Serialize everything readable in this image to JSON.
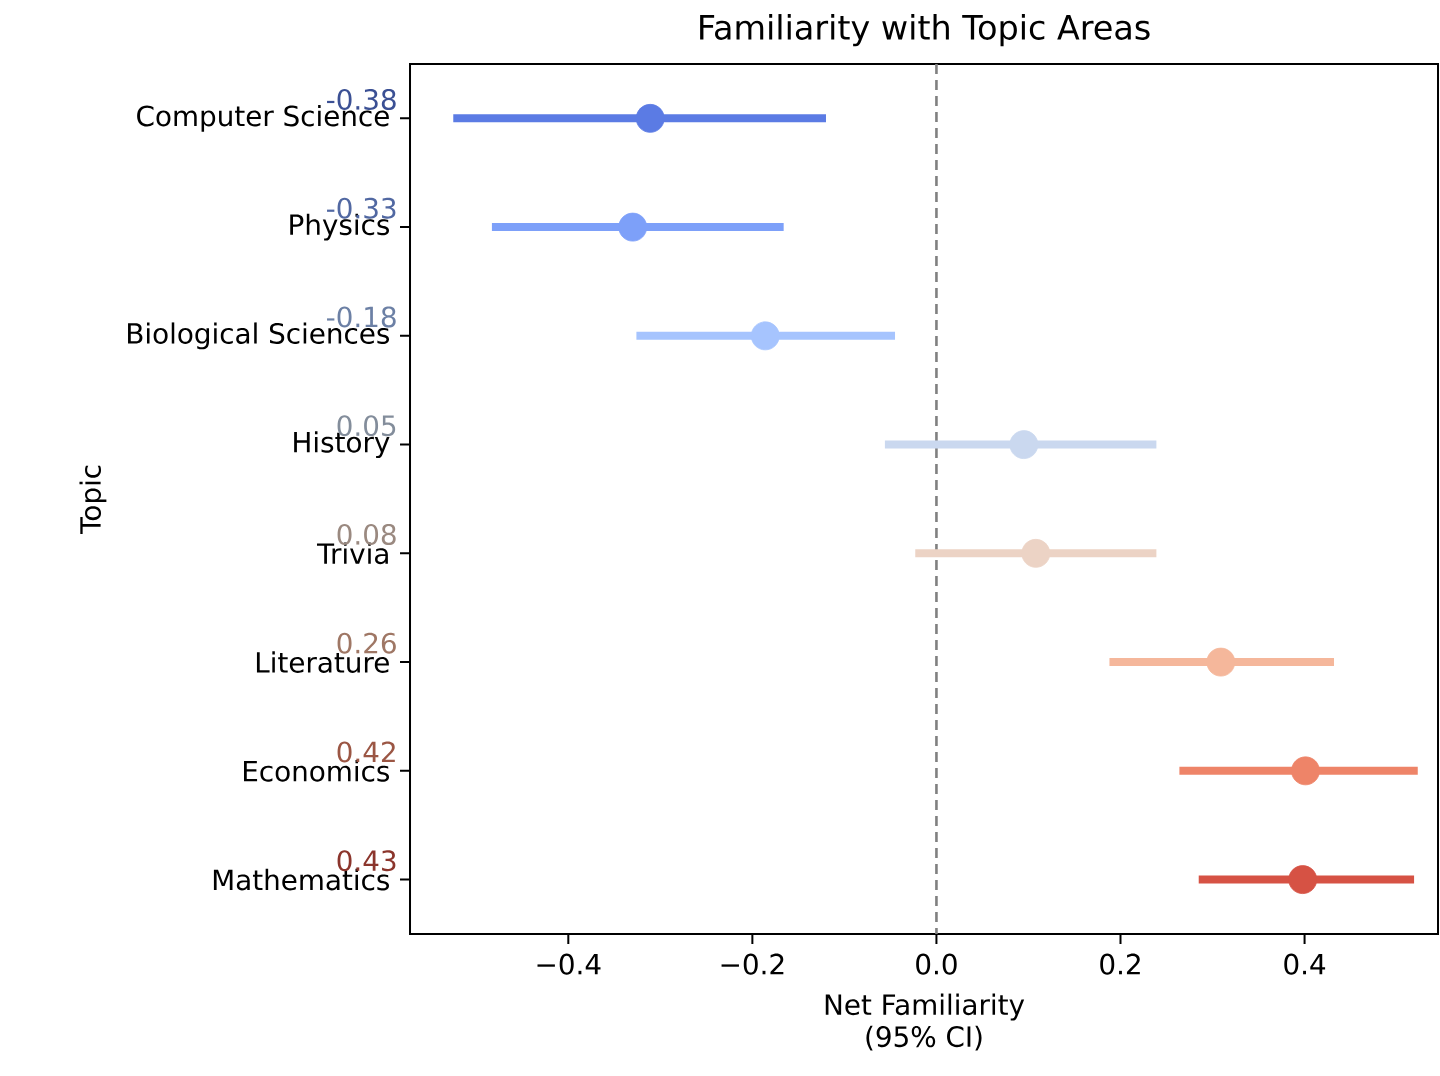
{
  "chart_data": {
    "type": "scatter",
    "orientation": "horizontal",
    "title": "Familiarity with Topic Areas",
    "xlabel": "Net Familiarity\n(95% CI)",
    "ylabel": "Topic",
    "categories": [
      "Computer Science",
      "Physics",
      "Biological Sciences",
      "History",
      "Trivia",
      "Literature",
      "Economics",
      "Mathematics"
    ],
    "values": [
      -0.311,
      -0.33,
      -0.186,
      0.095,
      0.108,
      0.309,
      0.401,
      0.398
    ],
    "errors": [
      [
        -0.525,
        -0.12
      ],
      [
        -0.483,
        -0.166
      ],
      [
        -0.326,
        -0.045
      ],
      [
        -0.056,
        0.239
      ],
      [
        -0.023,
        0.239
      ],
      [
        0.188,
        0.432
      ],
      [
        0.264,
        0.523
      ],
      [
        0.285,
        0.519
      ]
    ],
    "colors": [
      "#5b7be4",
      "#7da0f9",
      "#a6c4fe",
      "#cad8ef",
      "#ecd3c5",
      "#f5b79b",
      "#ee8468",
      "#d65244"
    ],
    "xlim": [
      -0.572,
      0.545
    ],
    "xticks": [
      {
        "value": -0.4,
        "label": "−0.4"
      },
      {
        "value": -0.2,
        "label": "−0.2"
      },
      {
        "value": 0,
        "label": "0.0"
      },
      {
        "value": 0.2,
        "label": "0.2"
      },
      {
        "value": 0.4,
        "label": "0.4"
      }
    ],
    "ref_lines": [
      {
        "axis": "x",
        "value": 0,
        "color": "#808080",
        "line_style": "dashed"
      }
    ],
    "marker": "circle",
    "annotations": [
      "-0.38",
      "-0.33",
      "-0.18",
      "0.05",
      "0.08",
      "0.26",
      "0.42",
      "0.43"
    ]
  }
}
